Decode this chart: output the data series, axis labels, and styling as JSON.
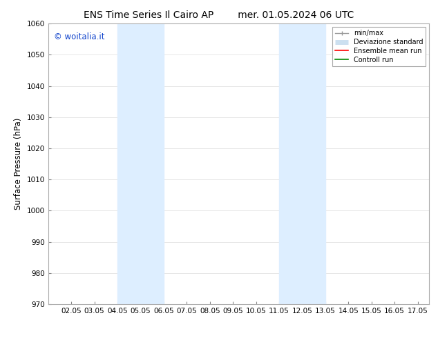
{
  "title_left": "ENS Time Series Il Cairo AP",
  "title_right": "mer. 01.05.2024 06 UTC",
  "ylabel": "Surface Pressure (hPa)",
  "ylim": [
    970,
    1060
  ],
  "yticks": [
    970,
    980,
    990,
    1000,
    1010,
    1020,
    1030,
    1040,
    1050,
    1060
  ],
  "xtick_labels": [
    "02.05",
    "03.05",
    "04.05",
    "05.05",
    "06.05",
    "07.05",
    "08.05",
    "09.05",
    "10.05",
    "11.05",
    "12.05",
    "13.05",
    "14.05",
    "15.05",
    "16.05",
    "17.05"
  ],
  "xlim": [
    1.0,
    17.5
  ],
  "xtick_positions": [
    2,
    3,
    4,
    5,
    6,
    7,
    8,
    9,
    10,
    11,
    12,
    13,
    14,
    15,
    16,
    17
  ],
  "background_color": "#ffffff",
  "plot_bg_color": "#ffffff",
  "shaded_bands": [
    {
      "x_start": 4.0,
      "x_end": 6.0,
      "color": "#ddeeff"
    },
    {
      "x_start": 11.0,
      "x_end": 13.0,
      "color": "#ddeeff"
    }
  ],
  "watermark_text": "© woitalia.it",
  "watermark_color": "#1144cc",
  "legend_items": [
    {
      "label": "min/max",
      "color": "#999999",
      "lw": 1.0
    },
    {
      "label": "Deviazione standard",
      "color": "#cce0f0",
      "lw": 5
    },
    {
      "label": "Ensemble mean run",
      "color": "#ff0000",
      "lw": 1.2
    },
    {
      "label": "Controll run",
      "color": "#008800",
      "lw": 1.2
    }
  ],
  "tick_fontsize": 7.5,
  "label_fontsize": 8.5,
  "title_fontsize": 10,
  "grid_color": "#dddddd",
  "grid_lw": 0.5
}
